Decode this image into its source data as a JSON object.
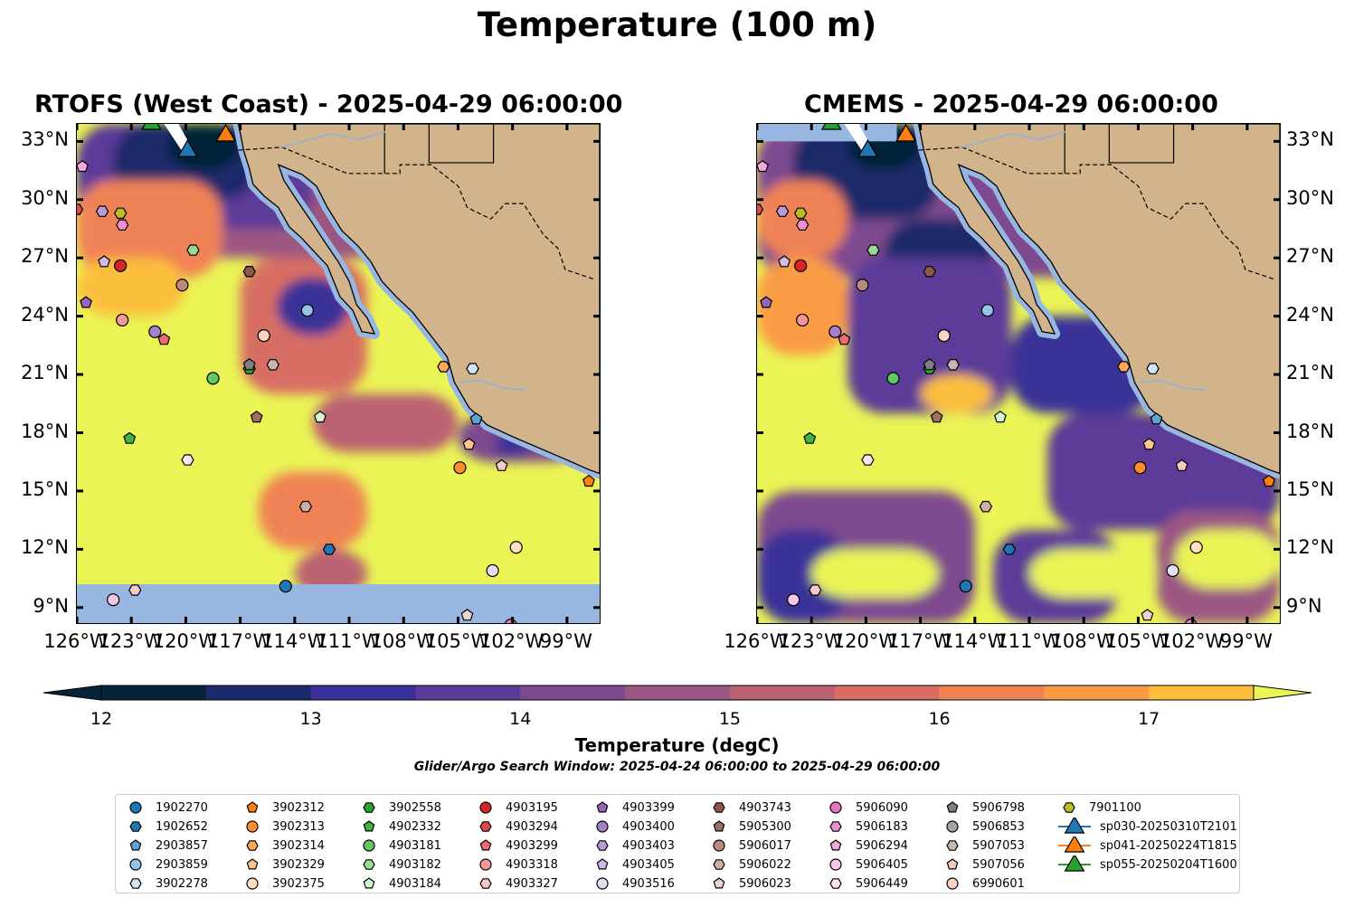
{
  "figure": {
    "title": "Temperature (100 m)",
    "panel_left_title": "RTOFS (West Coast) - 2025-04-29 06:00:00",
    "panel_right_title": "CMEMS - 2025-04-29 06:00:00",
    "lon_ticks": [
      "126°W",
      "123°W",
      "120°W",
      "117°W",
      "114°W",
      "111°W",
      "108°W",
      "105°W",
      "102°W",
      "99°W"
    ],
    "lat_ticks": [
      "33°N",
      "30°N",
      "27°N",
      "24°N",
      "21°N",
      "18°N",
      "15°N",
      "12°N",
      "9°N"
    ],
    "extent": {
      "lon_min": -126,
      "lon_max": -97.2,
      "lat_min": 8.2,
      "lat_max": 33.9
    }
  },
  "colorbar": {
    "label": "Temperature (degC)",
    "ticks": [
      "12",
      "13",
      "14",
      "15",
      "16",
      "17"
    ],
    "min": 12,
    "max": 17.5,
    "step": 0.5,
    "colors": [
      "#062437",
      "#1b2a6b",
      "#3a3198",
      "#5b3b99",
      "#7d4a8f",
      "#9b5783",
      "#bb6272",
      "#d86e63",
      "#f08354",
      "#fa9b44",
      "#fcbe3c",
      "#eaf455"
    ]
  },
  "search_window": "Glider/Argo Search Window: 2025-04-24 06:00:00 to 2025-04-29 06:00:00",
  "legend": [
    {
      "label": "1902270",
      "marker": "circle",
      "color": "#1f77b4"
    },
    {
      "label": "1902652",
      "marker": "hexagon",
      "color": "#1f77b4"
    },
    {
      "label": "2903857",
      "marker": "pentagon",
      "color": "#5fa2d6"
    },
    {
      "label": "2903859",
      "marker": "circle",
      "color": "#93c4e8"
    },
    {
      "label": "3902278",
      "marker": "hexagon",
      "color": "#cfe6f6"
    },
    {
      "label": "3902312",
      "marker": "pentagon",
      "color": "#ff7f0e"
    },
    {
      "label": "3902313",
      "marker": "circle",
      "color": "#ff8f2e"
    },
    {
      "label": "3902314",
      "marker": "hexagon",
      "color": "#ffa75a"
    },
    {
      "label": "3902329",
      "marker": "pentagon",
      "color": "#ffc58e"
    },
    {
      "label": "3902375",
      "marker": "circle",
      "color": "#ffe1c0"
    },
    {
      "label": "3902558",
      "marker": "hexagon",
      "color": "#2ca02c"
    },
    {
      "label": "4902332",
      "marker": "pentagon",
      "color": "#43b243"
    },
    {
      "label": "4903181",
      "marker": "circle",
      "color": "#63c763"
    },
    {
      "label": "4903182",
      "marker": "hexagon",
      "color": "#98dc98"
    },
    {
      "label": "4903184",
      "marker": "pentagon",
      "color": "#d2f5d2"
    },
    {
      "label": "4903195",
      "marker": "circle",
      "color": "#d62728"
    },
    {
      "label": "4903294",
      "marker": "hexagon",
      "color": "#e04848"
    },
    {
      "label": "4903299",
      "marker": "pentagon",
      "color": "#ea6e6e"
    },
    {
      "label": "4903318",
      "marker": "circle",
      "color": "#f29a9a"
    },
    {
      "label": "4903327",
      "marker": "hexagon",
      "color": "#f8c8c8"
    },
    {
      "label": "4903399",
      "marker": "pentagon",
      "color": "#9467bd"
    },
    {
      "label": "4903400",
      "marker": "circle",
      "color": "#a47fca"
    },
    {
      "label": "4903403",
      "marker": "hexagon",
      "color": "#b89cd8"
    },
    {
      "label": "4903405",
      "marker": "pentagon",
      "color": "#cfbce6"
    },
    {
      "label": "4903516",
      "marker": "circle",
      "color": "#e6dcf3"
    },
    {
      "label": "4903743",
      "marker": "hexagon",
      "color": "#8c564b"
    },
    {
      "label": "5905300",
      "marker": "pentagon",
      "color": "#a06e62"
    },
    {
      "label": "5906017",
      "marker": "circle",
      "color": "#b88a7e"
    },
    {
      "label": "5906022",
      "marker": "hexagon",
      "color": "#d1ada3"
    },
    {
      "label": "5906023",
      "marker": "pentagon",
      "color": "#ebd4cd"
    },
    {
      "label": "5906090",
      "marker": "circle",
      "color": "#e377c2"
    },
    {
      "label": "5906183",
      "marker": "hexagon",
      "color": "#ea8fcf"
    },
    {
      "label": "5906294",
      "marker": "pentagon",
      "color": "#f0a9dc"
    },
    {
      "label": "5906405",
      "marker": "circle",
      "color": "#f6c6e8"
    },
    {
      "label": "5906449",
      "marker": "hexagon",
      "color": "#fbe2f4"
    },
    {
      "label": "5906798",
      "marker": "pentagon",
      "color": "#7f7f7f"
    },
    {
      "label": "5906853",
      "marker": "circle",
      "color": "#a5a5a5"
    },
    {
      "label": "5907053",
      "marker": "hexagon",
      "color": "#c7b6b0"
    },
    {
      "label": "5907056",
      "marker": "pentagon",
      "color": "#f3c9c0"
    },
    {
      "label": "6990601",
      "marker": "circle",
      "color": "#ffd2c4"
    },
    {
      "label": "7901100",
      "marker": "hexagon",
      "color": "#bcbd22"
    },
    {
      "label": "sp030-20250310T2101",
      "marker": "triangle",
      "color": "#1f77b4"
    },
    {
      "label": "sp041-20250224T1815",
      "marker": "triangle",
      "color": "#ff7f0e"
    },
    {
      "label": "sp055-20250204T1600",
      "marker": "triangle",
      "color": "#2ca02c"
    }
  ],
  "floats": [
    {
      "id": "1902270",
      "lon": -114.5,
      "lat": 10.1
    },
    {
      "id": "1902652",
      "lon": -112.1,
      "lat": 12.0
    },
    {
      "id": "2903857",
      "lon": -104.0,
      "lat": 18.7
    },
    {
      "id": "2903859",
      "lon": -113.3,
      "lat": 24.3
    },
    {
      "id": "3902278",
      "lon": -104.2,
      "lat": 21.3
    },
    {
      "id": "3902312",
      "lon": -97.8,
      "lat": 15.5
    },
    {
      "id": "3902313",
      "lon": -104.9,
      "lat": 16.2
    },
    {
      "id": "3902314",
      "lon": -105.8,
      "lat": 21.4
    },
    {
      "id": "3902329",
      "lon": -104.4,
      "lat": 17.4
    },
    {
      "id": "3902375",
      "lon": -101.8,
      "lat": 12.1
    },
    {
      "id": "3902558",
      "lon": -116.5,
      "lat": 21.3
    },
    {
      "id": "4902332",
      "lon": -123.1,
      "lat": 17.7
    },
    {
      "id": "4903181",
      "lon": -118.5,
      "lat": 20.8
    },
    {
      "id": "4903182",
      "lon": -119.6,
      "lat": 27.4
    },
    {
      "id": "4903184",
      "lon": -112.6,
      "lat": 18.8
    },
    {
      "id": "4903195",
      "lon": -123.6,
      "lat": 26.6
    },
    {
      "id": "4903294",
      "lon": -126.0,
      "lat": 29.5
    },
    {
      "id": "4903299",
      "lon": -121.2,
      "lat": 22.8
    },
    {
      "id": "4903318",
      "lon": -123.5,
      "lat": 23.8
    },
    {
      "id": "4903327",
      "lon": -122.8,
      "lat": 9.9
    },
    {
      "id": "4903399",
      "lon": -125.5,
      "lat": 24.7
    },
    {
      "id": "4903400",
      "lon": -121.7,
      "lat": 23.2
    },
    {
      "id": "4903403",
      "lon": -124.6,
      "lat": 29.4
    },
    {
      "id": "4903405",
      "lon": -124.5,
      "lat": 26.8
    },
    {
      "id": "4903516",
      "lon": -103.1,
      "lat": 10.9
    },
    {
      "id": "4903743",
      "lon": -116.5,
      "lat": 26.3
    },
    {
      "id": "5905300",
      "lon": -116.1,
      "lat": 18.8
    },
    {
      "id": "5906017",
      "lon": -120.2,
      "lat": 25.6
    },
    {
      "id": "5906022",
      "lon": -113.4,
      "lat": 14.2
    },
    {
      "id": "5906023",
      "lon": -104.5,
      "lat": 8.6
    },
    {
      "id": "5906090",
      "lon": -102.1,
      "lat": 8.1
    },
    {
      "id": "5906183",
      "lon": -123.5,
      "lat": 28.7
    },
    {
      "id": "5906294",
      "lon": -125.7,
      "lat": 31.7
    },
    {
      "id": "5906405",
      "lon": -124.0,
      "lat": 9.4
    },
    {
      "id": "5906449",
      "lon": -119.9,
      "lat": 16.6
    },
    {
      "id": "5906798",
      "lon": -116.5,
      "lat": 21.5
    },
    {
      "id": "5906853",
      "lon": -115.7,
      "lat": 23.0
    },
    {
      "id": "5907053",
      "lon": -115.2,
      "lat": 21.5
    },
    {
      "id": "5907056",
      "lon": -102.6,
      "lat": 16.3
    },
    {
      "id": "6990601",
      "lon": -115.7,
      "lat": 23.0
    },
    {
      "id": "7901100",
      "lon": -123.6,
      "lat": 29.3
    }
  ],
  "gliders": [
    {
      "id": "sp030-20250310T2101",
      "lon": -119.9,
      "lat": 32.5
    },
    {
      "id": "sp041-20250224T1815",
      "lon": -117.8,
      "lat": 33.3
    },
    {
      "id": "sp055-20250204T1600",
      "lon": -121.9,
      "lat": 33.9
    }
  ]
}
